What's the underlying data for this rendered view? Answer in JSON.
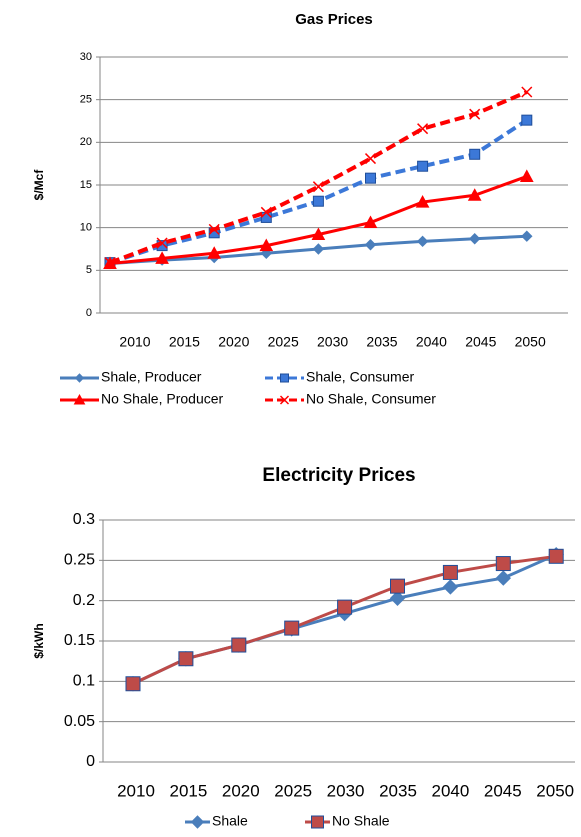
{
  "chart_data": [
    {
      "type": "line",
      "title": "Gas Prices",
      "y_label": "$/Mcf",
      "categories": [
        "2010",
        "2015",
        "2020",
        "2025",
        "2030",
        "2035",
        "2040",
        "2045",
        "2050"
      ],
      "ylim": [
        0,
        30
      ],
      "yticks": [
        0,
        5,
        10,
        15,
        20,
        25,
        30
      ],
      "grid": true,
      "legend": "bottom",
      "series": [
        {
          "name": "Shale, Producer",
          "color": "#4a7ebb",
          "marker": "diamond",
          "dashed": false,
          "values": [
            5.8,
            6.2,
            6.5,
            7.0,
            7.5,
            8.0,
            8.4,
            8.7,
            9.0
          ]
        },
        {
          "name": "Shale, Consumer",
          "color": "#3c78d8",
          "marker": "square",
          "dashed": true,
          "values": [
            5.9,
            7.9,
            9.4,
            11.2,
            13.1,
            15.8,
            17.2,
            18.6,
            22.6
          ]
        },
        {
          "name": "No Shale, Producer",
          "color": "#ff0000",
          "marker": "triangle",
          "dashed": false,
          "values": [
            5.8,
            6.4,
            7.0,
            7.9,
            9.2,
            10.6,
            13.0,
            13.8,
            16.0
          ]
        },
        {
          "name": "No Shale, Consumer",
          "color": "#ff0000",
          "marker": "x",
          "dashed": true,
          "values": [
            5.9,
            8.2,
            9.8,
            11.8,
            14.8,
            18.1,
            21.6,
            23.3,
            25.9
          ]
        }
      ]
    },
    {
      "type": "line",
      "title": "Electricity Prices",
      "y_label": "$/kWh",
      "categories": [
        "2010",
        "2015",
        "2020",
        "2025",
        "2030",
        "2035",
        "2040",
        "2045",
        "2050"
      ],
      "ylim": [
        0,
        0.3
      ],
      "yticks": [
        0,
        0.05,
        0.1,
        0.15,
        0.2,
        0.25,
        0.3
      ],
      "grid": true,
      "legend": "bottom",
      "series": [
        {
          "name": "Shale",
          "color": "#4a7ebb",
          "marker": "diamond",
          "dashed": false,
          "values": [
            0.097,
            0.128,
            0.145,
            0.165,
            0.184,
            0.203,
            0.217,
            0.228,
            0.257
          ]
        },
        {
          "name": "No Shale",
          "color": "#be4b48",
          "marker": "square",
          "dashed": false,
          "values": [
            0.097,
            0.128,
            0.145,
            0.166,
            0.192,
            0.218,
            0.235,
            0.246,
            0.255
          ]
        }
      ]
    }
  ]
}
